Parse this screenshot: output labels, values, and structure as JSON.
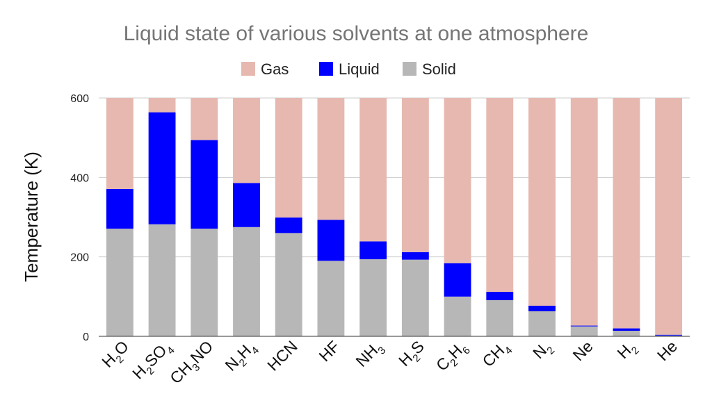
{
  "chart_data": {
    "type": "bar",
    "stacked": true,
    "title": "Liquid state of various solvents at one atmosphere",
    "xlabel": "",
    "ylabel": "Temperature (K)",
    "ylim": [
      0,
      600
    ],
    "yticks": [
      0,
      200,
      400,
      600
    ],
    "grid": true,
    "legend_position": "top-center",
    "colors": {
      "Gas": "#e6b8af",
      "Liquid": "#0000ff",
      "Solid": "#b7b7b7"
    },
    "categories": [
      [
        {
          "t": "H"
        },
        {
          "t": "2",
          "sub": true
        },
        {
          "t": "O"
        }
      ],
      [
        {
          "t": "H"
        },
        {
          "t": "2",
          "sub": true
        },
        {
          "t": "SO"
        },
        {
          "t": "4",
          "sub": true
        }
      ],
      [
        {
          "t": "CH"
        },
        {
          "t": "3",
          "sub": true
        },
        {
          "t": "NO"
        }
      ],
      [
        {
          "t": "N"
        },
        {
          "t": "2",
          "sub": true
        },
        {
          "t": "H"
        },
        {
          "t": "4",
          "sub": true
        }
      ],
      [
        {
          "t": "HCN"
        }
      ],
      [
        {
          "t": "HF"
        }
      ],
      [
        {
          "t": "NH"
        },
        {
          "t": "3",
          "sub": true
        }
      ],
      [
        {
          "t": "H"
        },
        {
          "t": "2",
          "sub": true
        },
        {
          "t": "S"
        }
      ],
      [
        {
          "t": "C"
        },
        {
          "t": "2",
          "sub": true
        },
        {
          "t": "H"
        },
        {
          "t": "6",
          "sub": true
        }
      ],
      [
        {
          "t": "CH"
        },
        {
          "t": "4",
          "sub": true
        }
      ],
      [
        {
          "t": "N"
        },
        {
          "t": "2",
          "sub": true
        }
      ],
      [
        {
          "t": "Ne"
        }
      ],
      [
        {
          "t": "H"
        },
        {
          "t": "2",
          "sub": true
        }
      ],
      [
        {
          "t": "He"
        }
      ]
    ],
    "series": [
      {
        "name": "Gas",
        "values": [
          229,
          36,
          106,
          214,
          301,
          307,
          361,
          388,
          416,
          488,
          523,
          573,
          580,
          596
        ]
      },
      {
        "name": "Liquid",
        "values": [
          100,
          282,
          223,
          111,
          39,
          103,
          45,
          19,
          84,
          21,
          14,
          2,
          6,
          2
        ]
      },
      {
        "name": "Solid",
        "values": [
          271,
          282,
          271,
          275,
          260,
          190,
          194,
          193,
          100,
          91,
          63,
          25,
          14,
          2
        ]
      }
    ]
  }
}
